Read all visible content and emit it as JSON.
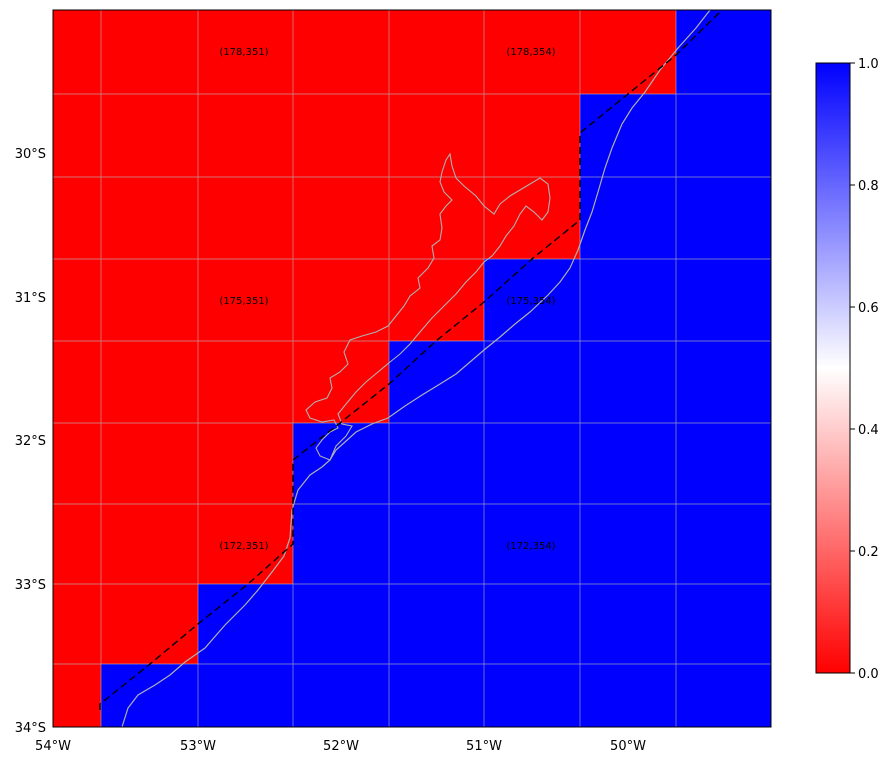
{
  "map": {
    "x_ticks": [
      "54°W",
      "53°W",
      "52°W",
      "51°W",
      "50°W"
    ],
    "y_ticks": [
      "30°S",
      "31°S",
      "32°S",
      "33°S",
      "34°S"
    ],
    "cell_labels": [
      "(178,351)",
      "(178,354)",
      "(175,351)",
      "(175,354)",
      "(172,351)",
      "(172,354)"
    ],
    "colors": {
      "mask_zero": "#ff0000",
      "mask_one": "#0000ff",
      "grid": "#bdbdbd",
      "coastline": "#b0b0b0",
      "boundary": "#000000"
    }
  },
  "colorbar": {
    "ticks": [
      "0.0",
      "0.2",
      "0.4",
      "0.6",
      "0.8",
      "1.0"
    ],
    "gradient": [
      "#ff0000",
      "#ffffff",
      "#0000ff"
    ]
  }
}
